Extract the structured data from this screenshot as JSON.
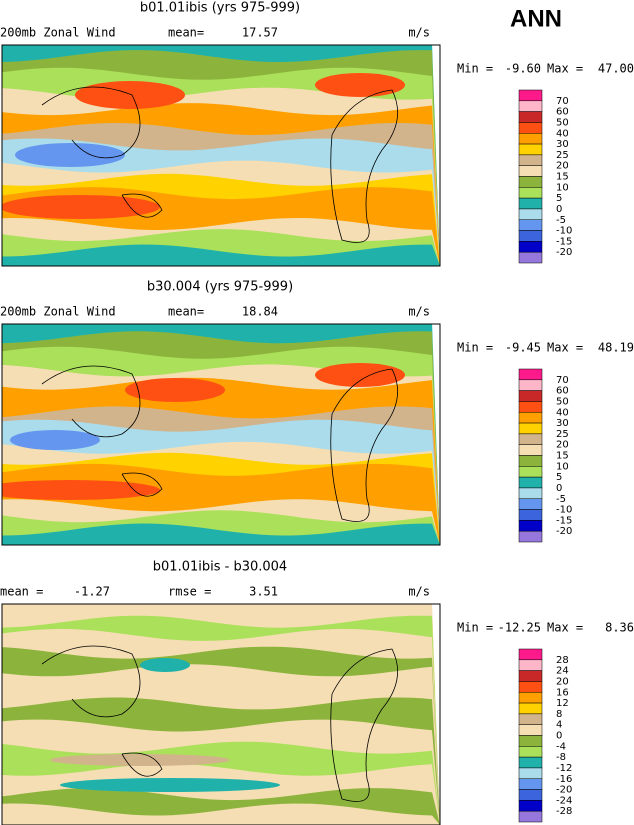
{
  "title": "ANN",
  "panels": [
    {
      "title": "b01.01ibis (yrs 975-999)",
      "variable": "200mb Zonal Wind",
      "stats": [
        {
          "label": "mean=",
          "value": "17.57"
        }
      ],
      "units": "m/s",
      "min_label": "Min =",
      "min": "-9.60",
      "max_label": "Max =",
      "max": "47.00",
      "colorbar": {
        "colors": [
          "#ff1a8c",
          "#ffb6c8",
          "#c82828",
          "#ff5014",
          "#ffa000",
          "#ffd200",
          "#d2b48c",
          "#f5deb3",
          "#8cb43c",
          "#aae05a",
          "#20b2aa",
          "#aadcec",
          "#6496f0",
          "#3c64dc",
          "#0000c8",
          "#9678dc"
        ],
        "labels": [
          70,
          60,
          50,
          40,
          30,
          25,
          20,
          15,
          10,
          5,
          0,
          -5,
          -10,
          -15,
          -20
        ]
      }
    },
    {
      "title": "b30.004 (yrs 975-999)",
      "variable": "200mb Zonal Wind",
      "stats": [
        {
          "label": "mean=",
          "value": "18.84"
        }
      ],
      "units": "m/s",
      "min_label": "Min =",
      "min": "-9.45",
      "max_label": "Max =",
      "max": "48.19",
      "colorbar": {
        "colors": [
          "#ff1a8c",
          "#ffb6c8",
          "#c82828",
          "#ff5014",
          "#ffa000",
          "#ffd200",
          "#d2b48c",
          "#f5deb3",
          "#8cb43c",
          "#aae05a",
          "#20b2aa",
          "#aadcec",
          "#6496f0",
          "#3c64dc",
          "#0000c8",
          "#9678dc"
        ],
        "labels": [
          70,
          60,
          50,
          40,
          30,
          25,
          20,
          15,
          10,
          5,
          0,
          -5,
          -10,
          -15,
          -20
        ]
      }
    },
    {
      "title": "b01.01ibis - b30.004",
      "stats": [
        {
          "label": "mean =",
          "value": "-1.27"
        },
        {
          "label": "rmse =",
          "value": "3.51"
        }
      ],
      "units": "m/s",
      "min_label": "Min =",
      "min": "-12.25",
      "max_label": "Max =",
      "max": "8.36",
      "colorbar": {
        "colors": [
          "#ff1a8c",
          "#ffb6c8",
          "#c82828",
          "#ff5014",
          "#ffa000",
          "#ffd200",
          "#d2b48c",
          "#f5deb3",
          "#8cb43c",
          "#aae05a",
          "#20b2aa",
          "#aadcec",
          "#6496f0",
          "#3c64dc",
          "#0000c8",
          "#9678dc"
        ],
        "labels": [
          28,
          24,
          20,
          16,
          12,
          8,
          4,
          0,
          -4,
          -8,
          -12,
          -16,
          -20,
          -24,
          -28
        ]
      }
    }
  ]
}
